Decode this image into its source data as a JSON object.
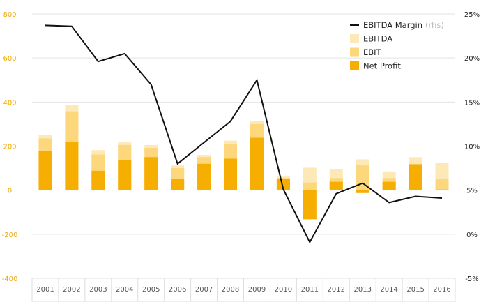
{
  "chart_data": {
    "type": "bar",
    "title": "",
    "xlabel": "",
    "ylabel": "",
    "categories": [
      "2001",
      "2002",
      "2003",
      "2004",
      "2005",
      "2006",
      "2007",
      "2008",
      "2009",
      "2010",
      "2011",
      "2012",
      "2013",
      "2014",
      "2015",
      "2016"
    ],
    "ylim": [
      -400,
      800
    ],
    "yticks": [
      -400,
      -200,
      0,
      200,
      400,
      600,
      800
    ],
    "ylim_right": [
      -5,
      25
    ],
    "yticks_right": [
      "-5%",
      "0%",
      "5%",
      "10%",
      "15%",
      "20%",
      "25%"
    ],
    "yticks_right_values": [
      -5,
      0,
      5,
      10,
      15,
      20,
      25
    ],
    "grid": "horizontal",
    "legend_position": "top-right",
    "series": [
      {
        "name": "EBITDA",
        "kind": "bar",
        "color": "#fde9b8",
        "values": [
          252,
          385,
          182,
          217,
          205,
          112,
          160,
          225,
          313,
          62,
          102,
          95,
          140,
          85,
          150,
          125
        ]
      },
      {
        "name": "EBIT",
        "kind": "bar",
        "color": "#fdd77c",
        "values": [
          235,
          358,
          162,
          205,
          192,
          100,
          150,
          210,
          300,
          55,
          35,
          55,
          115,
          55,
          115,
          50
        ]
      },
      {
        "name": "Net Profit",
        "kind": "bar",
        "color": "#f6ae00",
        "values": [
          178,
          220,
          88,
          138,
          150,
          50,
          120,
          143,
          238,
          50,
          -132,
          38,
          -13,
          38,
          118,
          3
        ]
      },
      {
        "name": "EBITDA Margin",
        "note": "(rhs)",
        "kind": "line",
        "color": "#111111",
        "axis": "right",
        "values": [
          23.7,
          23.6,
          19.6,
          20.5,
          17.0,
          8.0,
          10.4,
          12.8,
          17.5,
          5.1,
          -0.9,
          4.6,
          5.8,
          3.6,
          4.3,
          4.1
        ]
      }
    ]
  }
}
